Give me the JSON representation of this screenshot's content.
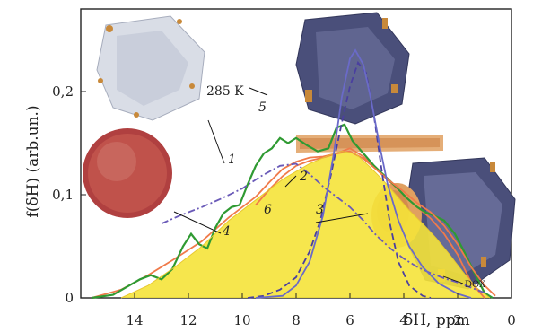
{
  "chart_data": {
    "type": "line",
    "xlabel": "δH, ppm",
    "ylabel": "f(δH) (arb.un.)",
    "xlim": [
      16,
      0
    ],
    "ylim": [
      0,
      0.28
    ],
    "x_ticks": [
      14,
      12,
      10,
      8,
      6,
      4,
      2,
      0
    ],
    "x_tick_labels": [
      "14",
      "12",
      "10",
      "8",
      "6",
      "4",
      "2",
      "0"
    ],
    "y_ticks": [
      0,
      0.1,
      0.2
    ],
    "y_tick_labels": [
      "0",
      "0,1",
      "0,2"
    ],
    "grid": false,
    "x_axis_reversed": true,
    "series": [
      {
        "key": "1",
        "color": "#f07a4a",
        "style": "solid",
        "points": [
          [
            15.6,
            0.0
          ],
          [
            14.5,
            0.008
          ],
          [
            13.5,
            0.022
          ],
          [
            12.5,
            0.038
          ],
          [
            11.5,
            0.055
          ],
          [
            10.5,
            0.078
          ],
          [
            10.0,
            0.088
          ],
          [
            9.5,
            0.098
          ],
          [
            9.0,
            0.112
          ],
          [
            8.5,
            0.125
          ],
          [
            8.0,
            0.132
          ],
          [
            7.5,
            0.136
          ],
          [
            7.0,
            0.137
          ],
          [
            6.5,
            0.14
          ],
          [
            6.0,
            0.145
          ],
          [
            5.5,
            0.137
          ],
          [
            5.0,
            0.124
          ],
          [
            4.5,
            0.112
          ],
          [
            4.0,
            0.1
          ],
          [
            3.5,
            0.088
          ],
          [
            3.0,
            0.077
          ],
          [
            2.5,
            0.062
          ],
          [
            2.0,
            0.042
          ],
          [
            1.5,
            0.015
          ],
          [
            1.0,
            0.0
          ]
        ]
      },
      {
        "key": "2",
        "color": "#2f9a32",
        "style": "solid",
        "points": [
          [
            15.6,
            0.0
          ],
          [
            14.8,
            0.003
          ],
          [
            14.2,
            0.012
          ],
          [
            13.8,
            0.018
          ],
          [
            13.4,
            0.022
          ],
          [
            13.0,
            0.018
          ],
          [
            12.6,
            0.028
          ],
          [
            12.2,
            0.05
          ],
          [
            11.9,
            0.062
          ],
          [
            11.6,
            0.052
          ],
          [
            11.3,
            0.048
          ],
          [
            11.0,
            0.068
          ],
          [
            10.7,
            0.082
          ],
          [
            10.4,
            0.088
          ],
          [
            10.1,
            0.09
          ],
          [
            9.8,
            0.11
          ],
          [
            9.5,
            0.128
          ],
          [
            9.2,
            0.14
          ],
          [
            8.9,
            0.145
          ],
          [
            8.6,
            0.155
          ],
          [
            8.3,
            0.15
          ],
          [
            8.0,
            0.155
          ],
          [
            7.6,
            0.148
          ],
          [
            7.2,
            0.142
          ],
          [
            6.8,
            0.145
          ],
          [
            6.5,
            0.165
          ],
          [
            6.2,
            0.168
          ],
          [
            5.9,
            0.152
          ],
          [
            5.5,
            0.14
          ],
          [
            5.1,
            0.128
          ],
          [
            4.7,
            0.118
          ],
          [
            4.3,
            0.108
          ],
          [
            3.9,
            0.097
          ],
          [
            3.5,
            0.088
          ],
          [
            3.2,
            0.083
          ],
          [
            2.9,
            0.08
          ],
          [
            2.5,
            0.075
          ],
          [
            2.1,
            0.062
          ],
          [
            1.7,
            0.042
          ],
          [
            1.3,
            0.02
          ],
          [
            1.0,
            0.005
          ],
          [
            0.7,
            0.0
          ]
        ]
      },
      {
        "key": "3",
        "color": "#f07a4a",
        "style": "solid",
        "points": [
          [
            9.5,
            0.09
          ],
          [
            9.0,
            0.105
          ],
          [
            8.5,
            0.118
          ],
          [
            8.0,
            0.128
          ],
          [
            7.5,
            0.133
          ],
          [
            7.0,
            0.136
          ],
          [
            6.5,
            0.14
          ],
          [
            6.0,
            0.142
          ],
          [
            5.5,
            0.135
          ],
          [
            5.0,
            0.124
          ],
          [
            4.5,
            0.113
          ],
          [
            4.0,
            0.103
          ],
          [
            3.5,
            0.092
          ],
          [
            3.0,
            0.083
          ],
          [
            2.5,
            0.07
          ],
          [
            2.0,
            0.052
          ],
          [
            1.5,
            0.03
          ],
          [
            1.0,
            0.012
          ],
          [
            0.6,
            0.002
          ]
        ]
      },
      {
        "key": "4",
        "color": "#f5e33a",
        "style": "filled",
        "points": [
          [
            14.5,
            0.0
          ],
          [
            13.5,
            0.012
          ],
          [
            12.5,
            0.03
          ],
          [
            11.5,
            0.05
          ],
          [
            10.5,
            0.075
          ],
          [
            9.5,
            0.095
          ],
          [
            8.5,
            0.115
          ],
          [
            7.5,
            0.13
          ],
          [
            6.8,
            0.138
          ],
          [
            6.3,
            0.142
          ],
          [
            5.8,
            0.14
          ],
          [
            5.3,
            0.128
          ],
          [
            4.8,
            0.115
          ],
          [
            4.3,
            0.1
          ],
          [
            3.8,
            0.085
          ],
          [
            3.3,
            0.072
          ],
          [
            2.8,
            0.058
          ],
          [
            2.3,
            0.042
          ],
          [
            1.8,
            0.025
          ],
          [
            1.3,
            0.01
          ],
          [
            0.8,
            0.0
          ]
        ]
      },
      {
        "key": "5",
        "color": "#4a3fa0",
        "style": "dashed",
        "points": [
          [
            9.8,
            0.0
          ],
          [
            9.2,
            0.002
          ],
          [
            8.6,
            0.008
          ],
          [
            8.0,
            0.02
          ],
          [
            7.5,
            0.045
          ],
          [
            7.1,
            0.075
          ],
          [
            6.7,
            0.12
          ],
          [
            6.3,
            0.17
          ],
          [
            6.0,
            0.205
          ],
          [
            5.7,
            0.228
          ],
          [
            5.4,
            0.218
          ],
          [
            5.1,
            0.175
          ],
          [
            4.8,
            0.12
          ],
          [
            4.5,
            0.07
          ],
          [
            4.2,
            0.035
          ],
          [
            3.8,
            0.012
          ],
          [
            3.3,
            0.002
          ],
          [
            3.0,
            0.0
          ]
        ]
      },
      {
        "key": "6",
        "color": "#6a5ab8",
        "style": "dash-dot",
        "points": [
          [
            13.0,
            0.072
          ],
          [
            12.3,
            0.08
          ],
          [
            11.5,
            0.088
          ],
          [
            10.8,
            0.096
          ],
          [
            10.0,
            0.106
          ],
          [
            9.3,
            0.118
          ],
          [
            8.6,
            0.128
          ],
          [
            8.0,
            0.13
          ],
          [
            7.5,
            0.12
          ],
          [
            7.0,
            0.108
          ],
          [
            6.5,
            0.098
          ],
          [
            6.0,
            0.088
          ],
          [
            5.5,
            0.075
          ],
          [
            5.0,
            0.06
          ],
          [
            4.5,
            0.048
          ],
          [
            4.0,
            0.038
          ],
          [
            3.5,
            0.03
          ],
          [
            3.0,
            0.024
          ],
          [
            2.5,
            0.019
          ],
          [
            2.0,
            0.015
          ],
          [
            1.5,
            0.01
          ],
          [
            1.0,
            0.005
          ]
        ]
      },
      {
        "key": "285 K",
        "color": "#6a6ac8",
        "style": "solid",
        "points": [
          [
            9.5,
            0.0
          ],
          [
            8.5,
            0.002
          ],
          [
            8.0,
            0.012
          ],
          [
            7.5,
            0.035
          ],
          [
            7.0,
            0.08
          ],
          [
            6.6,
            0.14
          ],
          [
            6.3,
            0.195
          ],
          [
            6.0,
            0.232
          ],
          [
            5.8,
            0.24
          ],
          [
            5.5,
            0.226
          ],
          [
            5.2,
            0.19
          ],
          [
            4.9,
            0.148
          ],
          [
            4.6,
            0.11
          ],
          [
            4.2,
            0.075
          ],
          [
            3.8,
            0.05
          ],
          [
            3.3,
            0.03
          ],
          [
            2.7,
            0.014
          ],
          [
            2.0,
            0.004
          ],
          [
            1.5,
            0.0
          ]
        ]
      }
    ],
    "curve_labels": [
      "1",
      "2",
      "3",
      "4",
      "5",
      "6"
    ],
    "annotations": [
      "285 K",
      "DOX"
    ]
  }
}
